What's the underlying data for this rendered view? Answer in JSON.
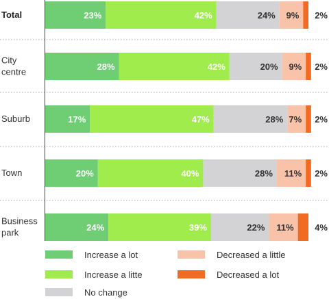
{
  "chart_data": {
    "type": "bar",
    "orientation": "horizontal",
    "stacked": true,
    "categories": [
      "Total",
      "City\ncentre",
      "Suburb",
      "Town",
      "Business\npark"
    ],
    "series": [
      {
        "name": "Increase a lot",
        "values": [
          23,
          28,
          17,
          20,
          24
        ],
        "color": "#6fcd74"
      },
      {
        "name": "Increase a litte",
        "values": [
          42,
          42,
          47,
          40,
          39
        ],
        "color": "#a0ec4c"
      },
      {
        "name": "No change",
        "values": [
          24,
          20,
          28,
          28,
          22
        ],
        "color": "#d3d3d6"
      },
      {
        "name": "Decreased a little",
        "values": [
          9,
          9,
          7,
          11,
          11
        ],
        "color": "#f8c3a9"
      },
      {
        "name": "Decreased a lot",
        "values": [
          2,
          2,
          2,
          2,
          4
        ],
        "color": "#f26b22"
      }
    ],
    "label_suffix": "%",
    "xlim": [
      0,
      100
    ],
    "grid": false,
    "legend_position": "bottom"
  }
}
